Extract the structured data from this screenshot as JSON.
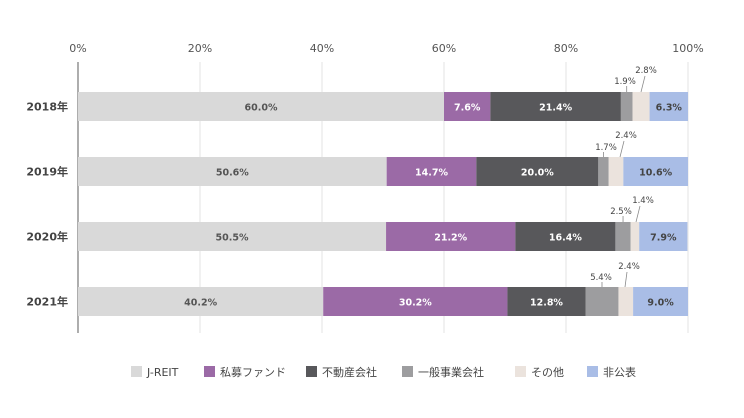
{
  "chart_data": {
    "type": "bar",
    "orientation": "horizontal",
    "stacked": true,
    "percent_axis": true,
    "categories": [
      "2018年",
      "2019年",
      "2020年",
      "2021年"
    ],
    "x_ticks": [
      "0%",
      "20%",
      "40%",
      "60%",
      "80%",
      "100%"
    ],
    "xlim": [
      0,
      100
    ],
    "grid": true,
    "legend_position": "bottom",
    "series": [
      {
        "name": "J-REIT",
        "color": "#d9d9d9",
        "text_color": "#555555",
        "values": [
          60.0,
          50.6,
          50.5,
          40.2
        ],
        "labels": [
          "60.0%",
          "50.6%",
          "50.5%",
          "40.2%"
        ]
      },
      {
        "name": "私募ファンド",
        "color": "#9b6aa6",
        "text_color": "#ffffff",
        "values": [
          7.6,
          14.7,
          21.2,
          30.2
        ],
        "labels": [
          "7.6%",
          "14.7%",
          "21.2%",
          "30.2%"
        ]
      },
      {
        "name": "不動産会社",
        "color": "#58585b",
        "text_color": "#ffffff",
        "values": [
          21.4,
          20.0,
          16.4,
          12.8
        ],
        "labels": [
          "21.4%",
          "20.0%",
          "16.4%",
          "12.8%"
        ]
      },
      {
        "name": "一般事業会社",
        "color": "#9d9d9f",
        "text_color": "#444444",
        "values": [
          1.9,
          1.7,
          2.5,
          5.4
        ],
        "labels": [
          "1.9%",
          "1.7%",
          "2.5%",
          "5.4%"
        ]
      },
      {
        "name": "その他",
        "color": "#ebe3dd",
        "text_color": "#444444",
        "values": [
          2.8,
          2.4,
          1.4,
          2.4
        ],
        "labels": [
          "2.8%",
          "2.4%",
          "1.4%",
          "2.4%"
        ]
      },
      {
        "name": "非公表",
        "color": "#a9bde6",
        "text_color": "#444444",
        "values": [
          6.3,
          10.6,
          7.9,
          9.0
        ],
        "labels": [
          "6.3%",
          "10.6%",
          "7.9%",
          "9.0%"
        ]
      }
    ]
  }
}
